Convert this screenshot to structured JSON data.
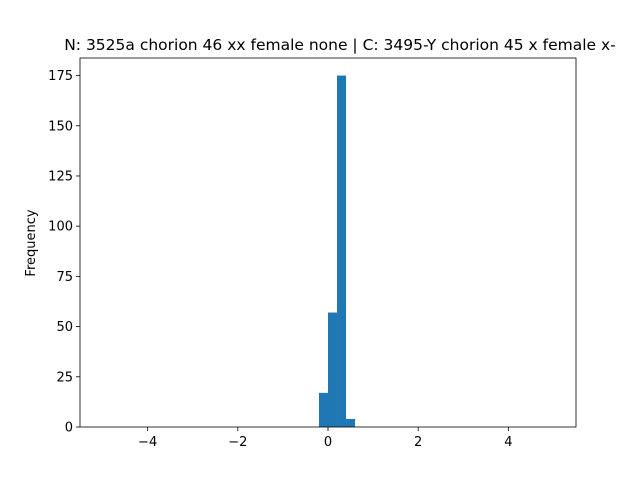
{
  "chart_data": {
    "type": "bar",
    "subtype": "histogram",
    "title": "N: 3525a chorion 46 xx female none | C: 3495-Y chorion 45 x female x-",
    "xlabel": "",
    "ylabel": "Frequency",
    "xlim": [
      -5.5,
      5.5
    ],
    "ylim": [
      0,
      183.75
    ],
    "xticks": [
      -4,
      -2,
      0,
      2,
      4
    ],
    "xtick_labels": [
      "−4",
      "−2",
      "0",
      "2",
      "4"
    ],
    "yticks": [
      0,
      25,
      50,
      75,
      100,
      125,
      150,
      175
    ],
    "ytick_labels": [
      "0",
      "25",
      "50",
      "75",
      "100",
      "125",
      "150",
      "175"
    ],
    "grid": false,
    "bar_color": "#1f77b4",
    "bins": [
      {
        "x0": -0.2,
        "x1": 0.0,
        "value": 17
      },
      {
        "x0": 0.0,
        "x1": 0.2,
        "value": 57
      },
      {
        "x0": 0.2,
        "x1": 0.4,
        "value": 175
      },
      {
        "x0": 0.4,
        "x1": 0.6,
        "value": 4
      }
    ]
  }
}
